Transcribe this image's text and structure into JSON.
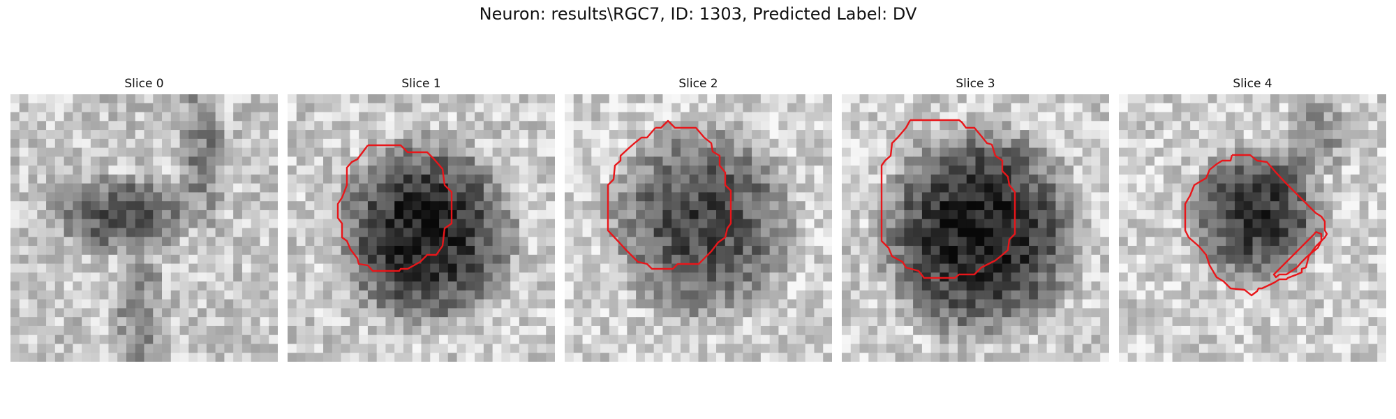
{
  "figure": {
    "title": "Neuron: results\\RGC7, ID: 1303, Predicted Label: DV"
  },
  "colors": {
    "contour": "#e8161a",
    "background": "#ffffff"
  },
  "panels": [
    {
      "title": "Slice 0",
      "has_contour": false
    },
    {
      "title": "Slice 1",
      "has_contour": true
    },
    {
      "title": "Slice 2",
      "has_contour": true
    },
    {
      "title": "Slice 3",
      "has_contour": true
    },
    {
      "title": "Slice 4",
      "has_contour": true
    }
  ]
}
